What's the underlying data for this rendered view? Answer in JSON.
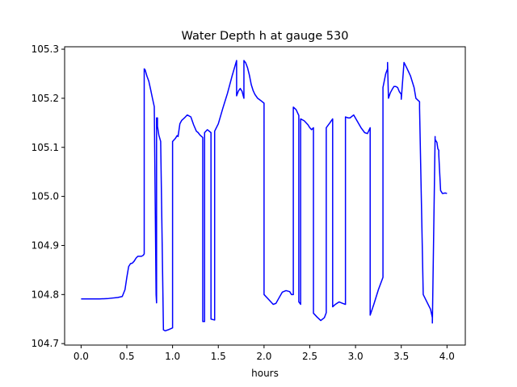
{
  "chart_data": {
    "type": "line",
    "title": "Water Depth h at gauge 530",
    "xlabel": "hours",
    "ylabel": "",
    "xlim": [
      -0.18,
      4.2
    ],
    "ylim": [
      104.697,
      105.305
    ],
    "xticks": [
      0.0,
      0.5,
      1.0,
      1.5,
      2.0,
      2.5,
      3.0,
      3.5,
      4.0
    ],
    "xtick_labels": [
      "0.0",
      "0.5",
      "1.0",
      "1.5",
      "2.0",
      "2.5",
      "3.0",
      "3.5",
      "4.0"
    ],
    "yticks": [
      104.7,
      104.8,
      104.9,
      105.0,
      105.1,
      105.2,
      105.3
    ],
    "ytick_labels": [
      "104.7",
      "104.8",
      "104.9",
      "105.0",
      "105.1",
      "105.2",
      "105.3"
    ],
    "grid": false,
    "legend": "none",
    "series": [
      {
        "color": "#0000ff",
        "x": [
          0.0,
          0.1,
          0.2,
          0.3,
          0.4,
          0.45,
          0.48,
          0.5,
          0.52,
          0.54,
          0.56,
          0.58,
          0.6,
          0.62,
          0.64,
          0.66,
          0.68,
          0.69,
          0.69,
          0.7,
          0.72,
          0.74,
          0.76,
          0.78,
          0.8,
          0.82,
          0.825,
          0.825,
          0.835,
          0.835,
          0.85,
          0.87,
          0.9,
          0.9,
          0.92,
          0.95,
          1.0,
          1.0,
          1.03,
          1.05,
          1.06,
          1.08,
          1.1,
          1.13,
          1.16,
          1.2,
          1.23,
          1.26,
          1.28,
          1.3,
          1.33,
          1.33,
          1.35,
          1.35,
          1.38,
          1.42,
          1.42,
          1.46,
          1.46,
          1.5,
          1.55,
          1.6,
          1.65,
          1.7,
          1.7,
          1.72,
          1.74,
          1.76,
          1.78,
          1.78,
          1.8,
          1.82,
          1.84,
          1.86,
          1.88,
          1.9,
          1.93,
          1.96,
          2.0,
          2.0,
          2.05,
          2.1,
          2.13,
          2.16,
          2.2,
          2.24,
          2.28,
          2.3,
          2.32,
          2.32,
          2.35,
          2.38,
          2.38,
          2.4,
          2.4,
          2.44,
          2.48,
          2.5,
          2.52,
          2.54,
          2.54,
          2.58,
          2.62,
          2.66,
          2.68,
          2.68,
          2.72,
          2.75,
          2.75,
          2.78,
          2.82,
          2.86,
          2.89,
          2.89,
          2.92,
          2.94,
          2.98,
          3.02,
          3.06,
          3.1,
          3.13,
          3.16,
          3.16,
          3.2,
          3.25,
          3.3,
          3.3,
          3.33,
          3.35,
          3.35,
          3.36,
          3.38,
          3.4,
          3.42,
          3.44,
          3.46,
          3.48,
          3.5,
          3.5,
          3.53,
          3.56,
          3.6,
          3.64,
          3.66,
          3.7,
          3.7,
          3.74,
          3.78,
          3.82,
          3.84,
          3.84,
          3.87,
          3.87,
          3.89,
          3.9,
          3.9,
          3.91,
          3.91,
          3.93,
          3.95,
          3.98,
          4.0
        ],
        "y": [
          104.791,
          104.791,
          104.791,
          104.792,
          104.794,
          104.796,
          104.81,
          104.835,
          104.857,
          104.863,
          104.864,
          104.868,
          104.874,
          104.878,
          104.878,
          104.878,
          104.88,
          104.883,
          105.26,
          105.258,
          105.245,
          105.235,
          105.218,
          105.2,
          105.183,
          104.8,
          104.783,
          105.16,
          105.16,
          105.143,
          105.125,
          105.112,
          104.73,
          104.728,
          104.726,
          104.728,
          104.732,
          105.112,
          105.118,
          105.124,
          105.122,
          105.148,
          105.155,
          105.16,
          105.166,
          105.162,
          105.146,
          105.133,
          105.13,
          105.125,
          105.12,
          104.745,
          104.745,
          105.13,
          105.136,
          105.13,
          104.75,
          104.748,
          105.133,
          105.148,
          105.18,
          105.21,
          105.245,
          105.277,
          105.205,
          105.215,
          105.22,
          105.214,
          105.2,
          105.277,
          105.272,
          105.262,
          105.247,
          105.228,
          105.216,
          105.208,
          105.2,
          105.196,
          105.19,
          104.8,
          104.79,
          104.78,
          104.782,
          104.792,
          104.805,
          104.808,
          104.806,
          104.8,
          104.8,
          105.182,
          105.177,
          105.165,
          104.785,
          104.78,
          105.158,
          105.154,
          105.146,
          105.14,
          105.136,
          105.14,
          104.762,
          104.754,
          104.747,
          104.753,
          104.763,
          105.14,
          105.15,
          105.158,
          104.775,
          104.78,
          104.785,
          104.782,
          104.78,
          105.162,
          105.16,
          105.16,
          105.166,
          105.153,
          105.14,
          105.13,
          105.128,
          105.14,
          104.758,
          104.78,
          104.81,
          104.835,
          105.222,
          105.25,
          105.26,
          105.273,
          105.2,
          105.211,
          105.218,
          105.224,
          105.224,
          105.222,
          105.213,
          105.208,
          105.198,
          105.273,
          105.262,
          105.246,
          105.222,
          105.2,
          105.193,
          105.18,
          104.8,
          104.785,
          104.77,
          104.753,
          104.742,
          105.122,
          105.116,
          105.11,
          105.097,
          105.097,
          105.094,
          105.085,
          105.012,
          105.006,
          105.007,
          105.006
        ]
      }
    ]
  }
}
